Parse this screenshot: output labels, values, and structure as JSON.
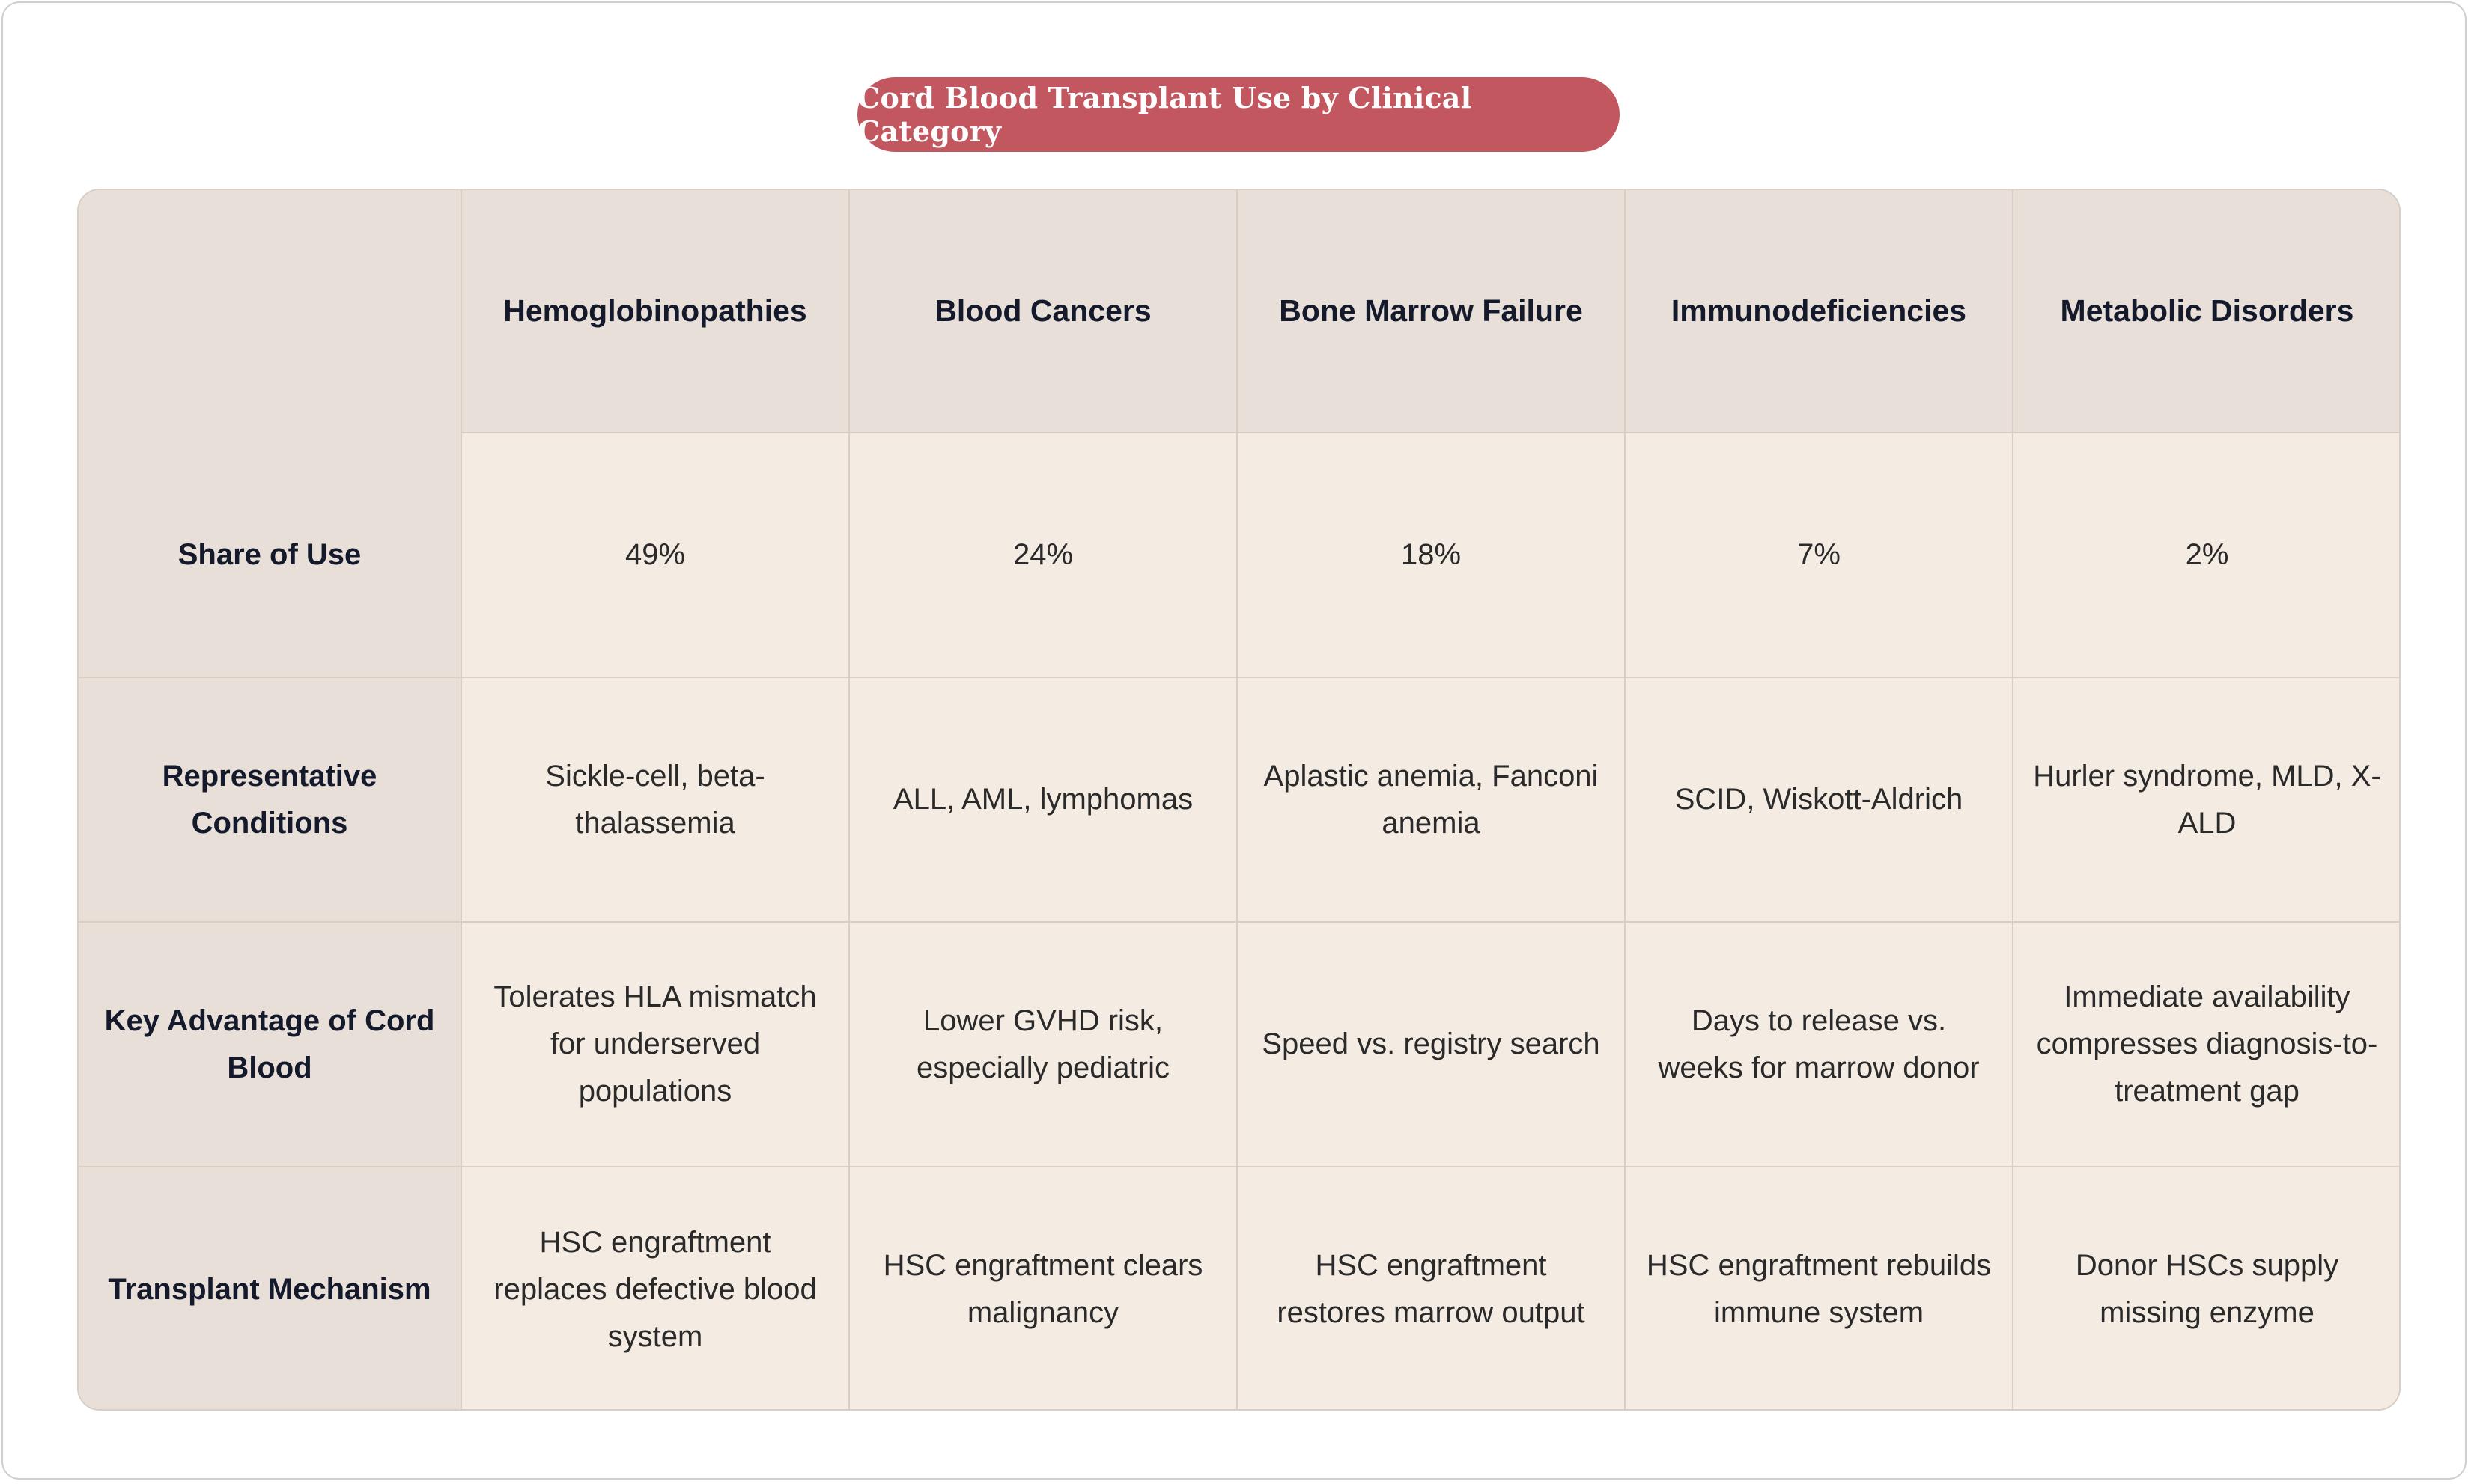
{
  "title": "Cord Blood Transplant Use by Clinical Category",
  "table": {
    "corner": "",
    "columns": [
      "Hemoglobinopathies",
      "Blood Cancers",
      "Bone Marrow Failure",
      "Immunodeficiencies",
      "Metabolic Disorders"
    ],
    "rows": [
      {
        "label": "Share of Use",
        "cells": [
          "49%",
          "24%",
          "18%",
          "7%",
          "2%"
        ]
      },
      {
        "label": "Representative Conditions",
        "cells": [
          "Sickle-cell, beta-thalassemia",
          "ALL, AML, lymphomas",
          "Aplastic anemia, Fanconi anemia",
          "SCID, Wiskott-Aldrich",
          "Hurler syndrome, MLD, X-ALD"
        ]
      },
      {
        "label": "Key Advantage of Cord Blood",
        "cells": [
          "Tolerates HLA mismatch for underserved populations",
          "Lower GVHD risk, especially pediatric",
          "Speed vs. registry search",
          "Days to release vs. weeks for marrow donor",
          "Immediate availability compresses diagnosis-to-treatment gap"
        ]
      },
      {
        "label": "Transplant Mechanism",
        "cells": [
          "HSC engraftment replaces defective blood system",
          "HSC engraftment clears malignancy",
          "HSC engraftment restores marrow output",
          "HSC engraftment rebuilds immune system",
          "Donor HSCs supply missing enzyme"
        ]
      }
    ]
  },
  "colors": {
    "title_background": "#c2575f",
    "header_background": "#e8e0d8",
    "cell_background": "#f4ebe3",
    "border": "#d8cec6"
  }
}
